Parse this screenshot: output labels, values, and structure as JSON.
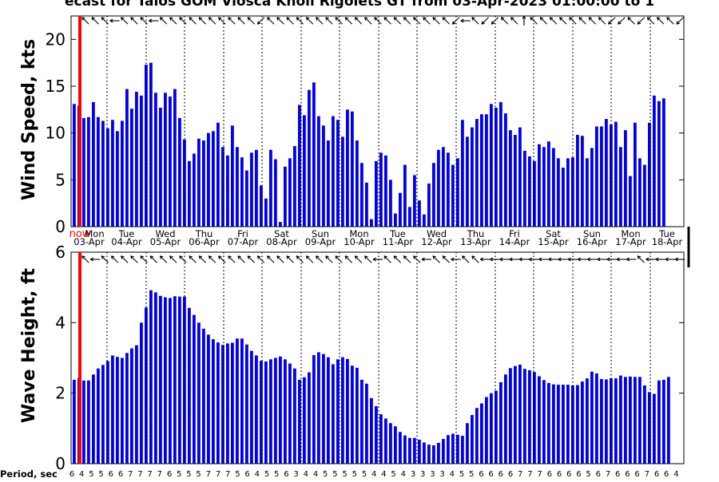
{
  "title": "ecast for Talos GOM Viosca Knoll Rigolets GT from 03-Apr-2023 01:00:00 to 1",
  "now_label": "now",
  "period_label": "Period, sec",
  "colors": {
    "bar": "#0000ee",
    "now_line": "#ff0000",
    "arrow": "#000000",
    "background": "#ffffff"
  },
  "day_labels": [
    {
      "dow": "Mon",
      "date": "03-Apr"
    },
    {
      "dow": "Tue",
      "date": "04-Apr"
    },
    {
      "dow": "Wed",
      "date": "05-Apr"
    },
    {
      "dow": "Thu",
      "date": "06-Apr"
    },
    {
      "dow": "Fri",
      "date": "07-Apr"
    },
    {
      "dow": "Sat",
      "date": "08-Apr"
    },
    {
      "dow": "Sun",
      "date": "09-Apr"
    },
    {
      "dow": "Mon",
      "date": "10-Apr"
    },
    {
      "dow": "Tue",
      "date": "11-Apr"
    },
    {
      "dow": "Wed",
      "date": "12-Apr"
    },
    {
      "dow": "Thu",
      "date": "13-Apr"
    },
    {
      "dow": "Fri",
      "date": "14-Apr"
    },
    {
      "dow": "Sat",
      "date": "15-Apr"
    },
    {
      "dow": "Sun",
      "date": "16-Apr"
    },
    {
      "dow": "Mon",
      "date": "17-Apr"
    },
    {
      "dow": "Tue",
      "date": "18-Apr"
    }
  ],
  "chart_data": [
    {
      "type": "bar",
      "title": "ecast for Talos GOM Viosca Knoll Rigolets GT from 03-Apr-2023 01:00:00 to 1",
      "ylabel": "Wind Speed, kts",
      "xlabel": "",
      "ylim": [
        0,
        22.5
      ],
      "yticks": [
        0,
        5,
        10,
        15,
        20
      ],
      "grid": "vertical dotted day separators",
      "x_unit": "3-hourly forecast steps from 03-Apr-2023 01:00",
      "values": [
        13.1,
        12.9,
        11.6,
        11.7,
        13.3,
        11.7,
        11.3,
        10.5,
        11.4,
        10.2,
        11.3,
        14.7,
        12.6,
        14.4,
        14.0,
        17.3,
        17.5,
        14.3,
        12.7,
        14.3,
        13.9,
        14.7,
        11.6,
        9.3,
        7.0,
        7.8,
        9.4,
        9.2,
        10.0,
        10.2,
        11.1,
        8.5,
        7.6,
        10.8,
        8.5,
        7.4,
        6.0,
        7.9,
        8.2,
        4.4,
        3.0,
        8.2,
        7.2,
        0.5,
        6.4,
        7.3,
        8.6,
        13.0,
        11.9,
        14.6,
        15.4,
        11.8,
        10.8,
        9.2,
        11.8,
        11.4,
        9.6,
        12.5,
        12.3,
        9.2,
        6.8,
        4.7,
        0.8,
        7.0,
        7.9,
        7.6,
        5.0,
        1.4,
        3.6,
        6.6,
        2.1,
        5.5,
        2.8,
        1.3,
        4.6,
        6.8,
        8.2,
        8.5,
        7.9,
        6.6,
        7.3,
        11.4,
        9.6,
        10.6,
        11.5,
        12.0,
        12.0,
        13.1,
        12.7,
        13.3,
        12.1,
        10.3,
        9.8,
        10.6,
        8.1,
        7.5,
        7.0,
        8.8,
        8.5,
        9.1,
        8.4,
        7.3,
        6.3,
        7.3,
        7.4,
        9.8,
        9.7,
        7.3,
        8.4,
        10.7,
        10.7,
        11.5,
        10.9,
        11.2,
        8.5,
        10.3,
        5.4,
        11.1,
        7.3,
        6.6,
        11.1,
        14.0,
        13.4,
        13.7
      ]
    },
    {
      "type": "bar",
      "ylabel": "Wave Height, ft",
      "xlabel": "",
      "ylim": [
        0,
        6
      ],
      "yticks": [
        0,
        2,
        4,
        6
      ],
      "grid": "vertical dotted day separators",
      "x_unit": "3-hourly forecast steps from 03-Apr-2023 01:00",
      "values": [
        2.38,
        2.43,
        2.36,
        2.36,
        2.53,
        2.7,
        2.8,
        2.91,
        3.07,
        3.03,
        3.0,
        3.14,
        3.27,
        3.36,
        4.0,
        4.43,
        4.92,
        4.86,
        4.76,
        4.72,
        4.7,
        4.75,
        4.74,
        4.74,
        4.42,
        4.22,
        4.0,
        3.83,
        3.66,
        3.53,
        3.44,
        3.37,
        3.41,
        3.43,
        3.55,
        3.55,
        3.38,
        3.2,
        3.07,
        2.92,
        2.9,
        2.96,
        3.0,
        3.04,
        2.96,
        2.84,
        2.7,
        2.38,
        2.45,
        2.59,
        3.08,
        3.16,
        3.11,
        3.02,
        2.82,
        2.96,
        3.02,
        2.97,
        2.78,
        2.72,
        2.38,
        2.27,
        1.86,
        1.63,
        1.4,
        1.28,
        1.15,
        1.06,
        0.9,
        0.8,
        0.73,
        0.73,
        0.68,
        0.6,
        0.54,
        0.52,
        0.59,
        0.7,
        0.81,
        0.85,
        0.82,
        0.79,
        1.15,
        1.38,
        1.58,
        1.71,
        1.89,
        2.0,
        2.07,
        2.31,
        2.53,
        2.71,
        2.77,
        2.81,
        2.69,
        2.65,
        2.6,
        2.48,
        2.37,
        2.29,
        2.25,
        2.24,
        2.24,
        2.24,
        2.22,
        2.23,
        2.33,
        2.42,
        2.61,
        2.56,
        2.4,
        2.39,
        2.42,
        2.42,
        2.5,
        2.46,
        2.47,
        2.46,
        2.46,
        2.22,
        2.03,
        1.98,
        2.36,
        2.38,
        2.46
      ]
    }
  ],
  "period_values": [
    6,
    4,
    5,
    5,
    6,
    6,
    7,
    7,
    7,
    7,
    6,
    5,
    5,
    5,
    7,
    7,
    7,
    5,
    6,
    4,
    5,
    5,
    6,
    3,
    4,
    4,
    5,
    5,
    5,
    5,
    5,
    4,
    4,
    5,
    4,
    3,
    3,
    3,
    3,
    4,
    5,
    5,
    6,
    6,
    6,
    6,
    7,
    7,
    7,
    6,
    6,
    6,
    6,
    5,
    6,
    7,
    6,
    6,
    6,
    7,
    6,
    6,
    4
  ],
  "wind_dir_deg": [
    315,
    315,
    315,
    270,
    315,
    315,
    315,
    270,
    315,
    315,
    315,
    315,
    315,
    315,
    315,
    315,
    315,
    315,
    225,
    315,
    315,
    315,
    315,
    315,
    315,
    315,
    315,
    315,
    315,
    315,
    315,
    315,
    315,
    315,
    315,
    315,
    315,
    315,
    225,
    270,
    315,
    225,
    225,
    315,
    315,
    0,
    315,
    315,
    315,
    315,
    315,
    315,
    315,
    315,
    225,
    225,
    315,
    225,
    315,
    315,
    315,
    225
  ],
  "wave_dir_deg": [
    315,
    270,
    315,
    315,
    315,
    315,
    315,
    315,
    315,
    315,
    315,
    315,
    315,
    315,
    315,
    315,
    315,
    315,
    315,
    315,
    315,
    315,
    315,
    315,
    315,
    315,
    315,
    315,
    315,
    315,
    270,
    315,
    315,
    315,
    315,
    270,
    315,
    315,
    270,
    315,
    315,
    270,
    270,
    270,
    270,
    270,
    270,
    270,
    270,
    270,
    270,
    270,
    270,
    270,
    270,
    270,
    270,
    315,
    270,
    270,
    270,
    270,
    270,
    270
  ]
}
